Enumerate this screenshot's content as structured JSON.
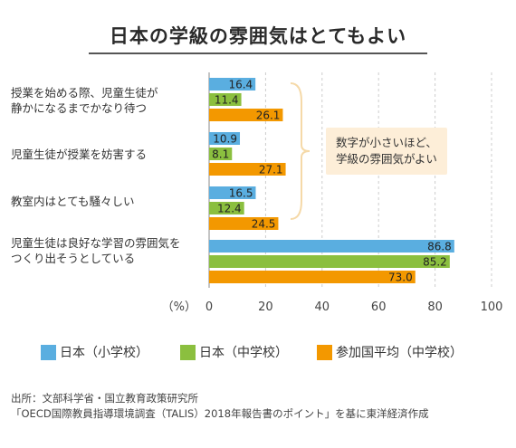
{
  "title": "日本の学級の雰囲気はとてもよい",
  "annotation": {
    "line1": "数字が小さいほど、",
    "line2": "学級の雰囲気がよい"
  },
  "legend": [
    {
      "label": "日本（小学校）",
      "color": "#5aaee0"
    },
    {
      "label": "日本（中学校）",
      "color": "#8bbf3f"
    },
    {
      "label": "参加国平均（中学校）",
      "color": "#f39800"
    }
  ],
  "source": {
    "line1": "出所：文部科学省・国立教育政策研究所",
    "line2": "「OECD国際教員指導環境調査（TALIS）2018年報告書のポイント」を基に東洋経済作成"
  },
  "chart_data": {
    "type": "bar",
    "orientation": "horizontal",
    "title": "日本の学級の雰囲気はとてもよい",
    "xunit": "（%）",
    "xlim": [
      0,
      100
    ],
    "xticks": [
      0,
      20,
      40,
      60,
      80,
      100
    ],
    "grid": true,
    "categories": [
      [
        "授業を始める際、児童生徒が",
        "静かになるまでかなり待つ"
      ],
      [
        "児童生徒が授業を妨害する"
      ],
      [
        "教室内はとても騒々しい"
      ],
      [
        "児童生徒は良好な学習の雰囲気を",
        "つくり出そうとしている"
      ]
    ],
    "series": [
      {
        "name": "日本（小学校）",
        "color": "#5aaee0",
        "values": [
          16.4,
          10.9,
          16.5,
          86.8
        ]
      },
      {
        "name": "日本（中学校）",
        "color": "#8bbf3f",
        "values": [
          11.4,
          8.1,
          12.4,
          85.2
        ]
      },
      {
        "name": "参加国平均（中学校）",
        "color": "#f39800",
        "values": [
          26.1,
          27.1,
          24.5,
          73.0
        ]
      }
    ]
  }
}
